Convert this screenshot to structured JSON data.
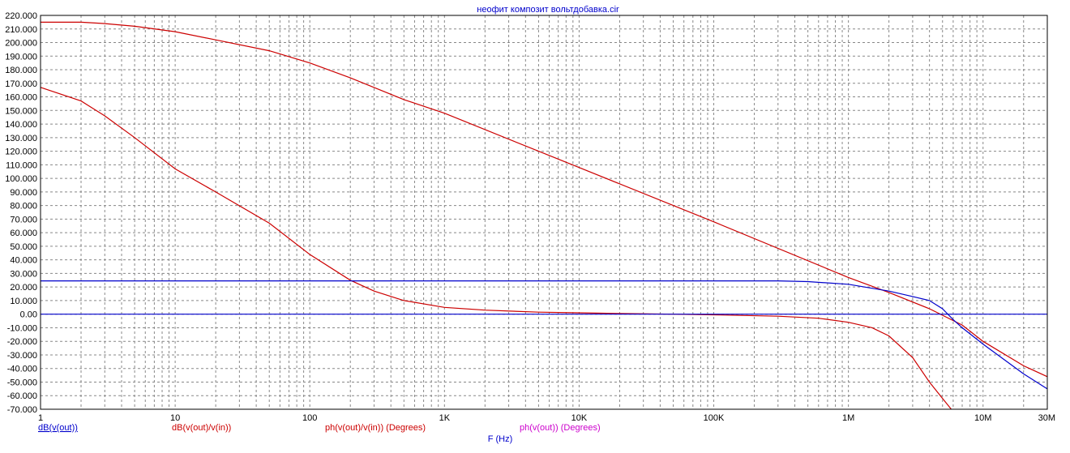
{
  "chart_data": {
    "type": "line",
    "title": "неофит  композит вольтдобавка.cir",
    "xlabel": "F (Hz)",
    "xscale": "log",
    "xlim": [
      1,
      30000000
    ],
    "ylim": [
      -70,
      220
    ],
    "ystep": 10,
    "grid": true,
    "y_tick_labels": [
      "220.000",
      "210.000",
      "200.000",
      "190.000",
      "180.000",
      "170.000",
      "160.000",
      "150.000",
      "140.000",
      "130.000",
      "120.000",
      "110.000",
      "100.000",
      "90.000",
      "80.000",
      "70.000",
      "60.000",
      "50.000",
      "40.000",
      "30.000",
      "20.000",
      "10.000",
      "0.00",
      "-10.000",
      "-20.000",
      "-30.000",
      "-40.000",
      "-50.000",
      "-60.000",
      "-70.000"
    ],
    "x_ticks": [
      {
        "value": 1,
        "label": "1"
      },
      {
        "value": 10,
        "label": "10"
      },
      {
        "value": 100,
        "label": "100"
      },
      {
        "value": 1000,
        "label": "1K"
      },
      {
        "value": 10000,
        "label": "10K"
      },
      {
        "value": 100000,
        "label": "100K"
      },
      {
        "value": 1000000,
        "label": "1M"
      },
      {
        "value": 10000000,
        "label": "10M"
      },
      {
        "value": 30000000,
        "label": "30M"
      }
    ],
    "legend": [
      {
        "label": "dB(v(out))",
        "color": "#0000cc",
        "underline": true
      },
      {
        "label": "dB(v(out)/v(in))",
        "color": "#cc0000"
      },
      {
        "label": "ph(v(out)/v(in)) (Degrees)",
        "color": "#cc0000"
      },
      {
        "label": "ph(v(out)) (Degrees)",
        "color": "#cc00cc"
      }
    ],
    "series": [
      {
        "color": "#cc0000",
        "x": [
          1,
          2,
          3,
          5,
          10,
          20,
          50,
          100,
          200,
          500,
          1000,
          5000,
          10000,
          100000,
          1000000,
          2000000,
          4000000,
          7000000,
          10000000,
          20000000,
          30000000
        ],
        "y": [
          215,
          215,
          214,
          212,
          208,
          202,
          194,
          185,
          174,
          158,
          148,
          120,
          108,
          68,
          27,
          16,
          4,
          -8,
          -20,
          -38,
          -46
        ]
      },
      {
        "color": "#cc0000",
        "x": [
          1,
          2,
          3,
          5,
          10,
          20,
          50,
          100,
          200,
          300,
          500,
          1000,
          2000,
          5000,
          10000,
          20000,
          50000,
          100000,
          300000,
          600000,
          1000000,
          1500000,
          2000000,
          3000000,
          4000000,
          5000000,
          5800000
        ],
        "y": [
          167,
          157,
          146,
          130,
          107,
          90,
          67,
          44,
          25,
          17,
          10,
          5,
          3,
          1.5,
          1,
          0.5,
          0,
          -0.5,
          -1.5,
          -3,
          -6,
          -10,
          -16,
          -32,
          -50,
          -62,
          -70
        ]
      },
      {
        "color": "#0000cc",
        "x": [
          1,
          10,
          100,
          1000,
          10000,
          100000,
          300000,
          500000,
          1000000,
          2000000,
          3000000,
          4000000,
          5000000,
          6000000,
          7000000,
          10000000,
          20000000,
          30000000
        ],
        "y": [
          24.5,
          24.5,
          24.5,
          24.5,
          24.5,
          24.5,
          24.5,
          24,
          22,
          17,
          13,
          10,
          4,
          -4,
          -10,
          -22,
          -44,
          -55
        ]
      },
      {
        "color": "#0000cc",
        "x": [
          1,
          30000000
        ],
        "y": [
          0,
          0
        ]
      }
    ]
  }
}
